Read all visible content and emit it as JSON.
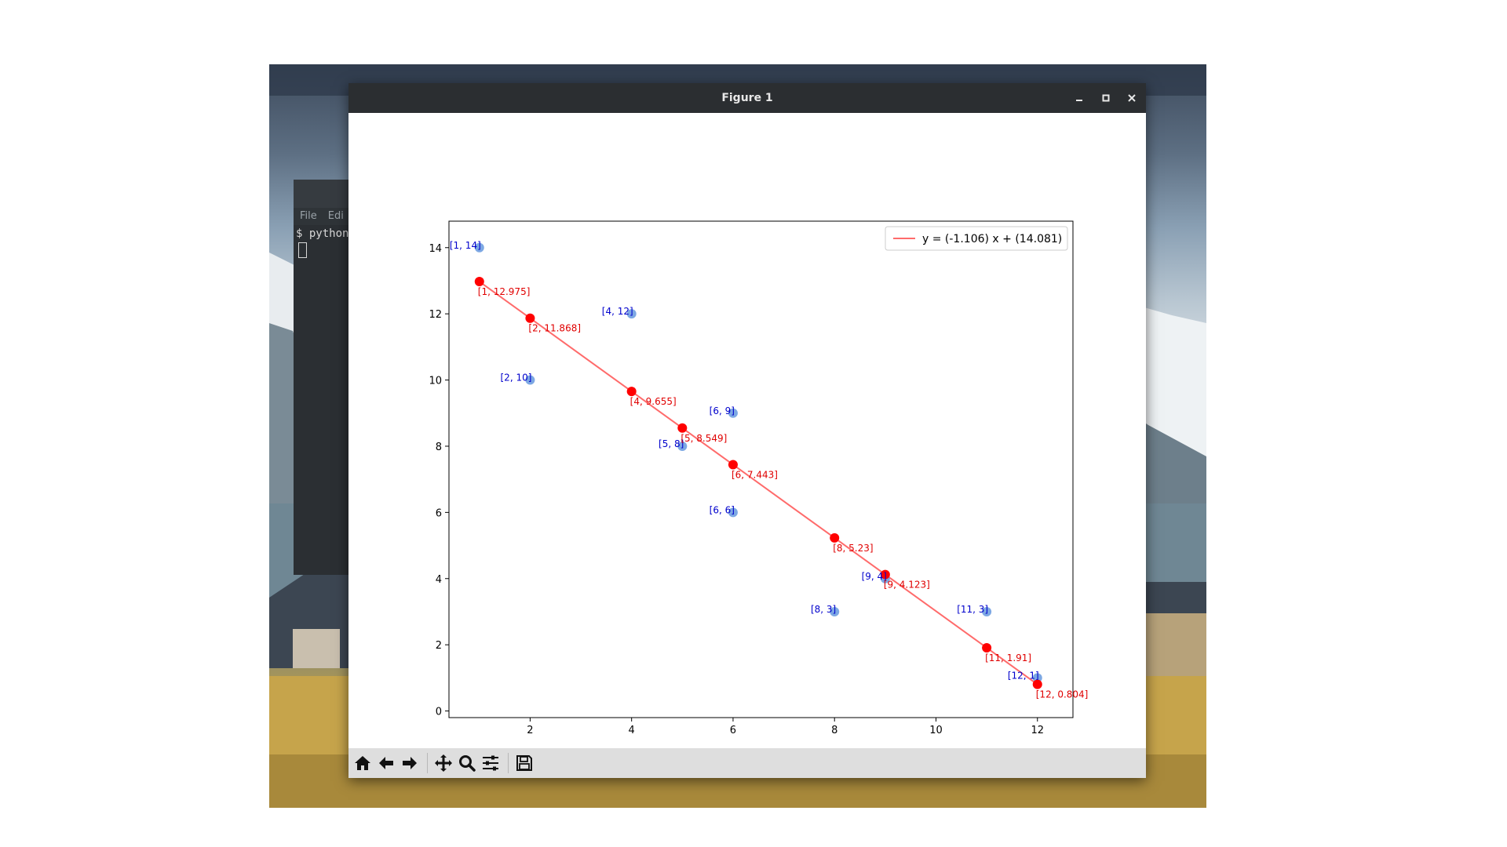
{
  "window": {
    "title": "Figure 1",
    "minimize_icon": "minimize-icon",
    "maximize_icon": "maximize-icon",
    "close_icon": "close-icon"
  },
  "terminal": {
    "menu": [
      "File",
      "Edi"
    ],
    "prompt": "$ python"
  },
  "toolbar": {
    "buttons": [
      "home-icon",
      "back-arrow-icon",
      "forward-arrow-icon",
      "pan-icon",
      "zoom-icon",
      "configure-subplots-icon",
      "save-icon"
    ]
  },
  "colors": {
    "fit": "#ff0000",
    "line": "#ff6b6b",
    "points": "#6f9ee0",
    "blue_text": "#0000cc",
    "red_text": "#e00000"
  },
  "chart_data": {
    "type": "scatter",
    "title": "",
    "xlabel": "",
    "ylabel": "",
    "xlim": [
      0.4,
      12.7
    ],
    "ylim": [
      -0.2,
      14.8
    ],
    "xticks": [
      2,
      4,
      6,
      8,
      10,
      12
    ],
    "yticks": [
      0,
      2,
      4,
      6,
      8,
      10,
      12,
      14
    ],
    "grid": false,
    "legend_position": "top-right",
    "legend": [
      "y = (-1.106) x + (14.081)"
    ],
    "series": [
      {
        "name": "",
        "kind": "scatter",
        "x": [
          1,
          4,
          2,
          6,
          5,
          6,
          9,
          8,
          11,
          12
        ],
        "y": [
          14,
          12,
          10,
          9,
          8,
          6,
          4,
          3,
          3,
          1
        ],
        "labels": [
          "[1, 14]",
          "[4, 12]",
          "[2, 10]",
          "[6, 9]",
          "[5, 8]",
          "[6, 6]",
          "[9, 4]",
          "[8, 3]",
          "[11, 3]",
          "[12, 1]"
        ]
      },
      {
        "name": "y = (-1.106) x + (14.081)",
        "kind": "line",
        "x": [
          1,
          2,
          4,
          5,
          6,
          8,
          9,
          11,
          12
        ],
        "y": [
          12.975,
          11.868,
          9.655,
          8.549,
          7.443,
          5.23,
          4.123,
          1.91,
          0.804
        ],
        "labels": [
          "[1, 12.975]",
          "[2, 11.868]",
          "[4, 9.655]",
          "[5, 8.549]",
          "[6, 7.443]",
          "[8, 5.23]",
          "[9, 4.123]",
          "[11, 1.91]",
          "[12, 0.804]"
        ]
      }
    ]
  }
}
